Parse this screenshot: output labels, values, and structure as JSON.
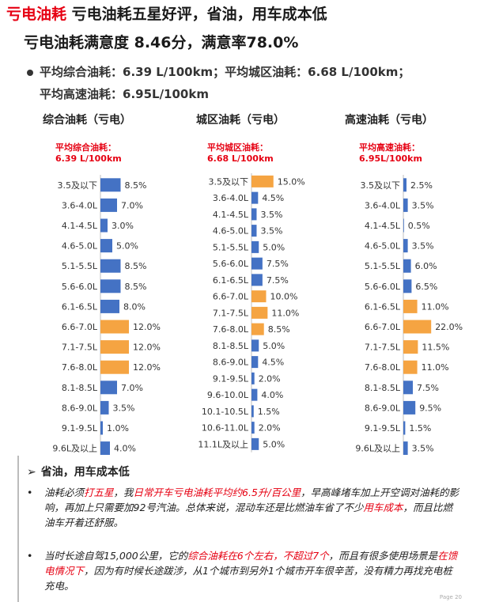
{
  "header": {
    "brand": "亏电油耗",
    "title_rest": " 亏电油耗五星好评，省油，用车成本低",
    "subtitle": "亏电油耗满意度 8.46分，满意率78.0%",
    "averages_line1": "平均综合油耗：6.39 L/100km；平均城区油耗：6.68 L/100km；",
    "averages_line2": "平均高速油耗：6.95L/100km"
  },
  "colors": {
    "accent": "#e60012",
    "bar_blue": "#4472c4",
    "bar_orange": "#f5a442"
  },
  "chart_data": [
    {
      "type": "bar",
      "orientation": "horizontal",
      "title": "综合油耗（亏电）",
      "annotation": [
        "平均综合油耗：",
        "6.39 L/100km"
      ],
      "categories": [
        "3.5及以下",
        "3.6-4.0L",
        "4.1-4.5L",
        "4.6-5.0L",
        "5.1-5.5L",
        "5.6-6.0L",
        "6.1-6.5L",
        "6.6-7.0L",
        "7.1-7.5L",
        "7.6-8.0L",
        "8.1-8.5L",
        "8.6-9.0L",
        "9.1-9.5L",
        "9.6L及以上"
      ],
      "values": [
        8.5,
        7.0,
        3.0,
        5.0,
        8.5,
        8.5,
        8.0,
        12.0,
        12.0,
        12.0,
        7.0,
        3.5,
        1.0,
        4.0
      ],
      "labels": [
        "8.5%",
        "7.0%",
        "3.0%",
        "5.0%",
        "8.5%",
        "8.5%",
        "8.0%",
        "12.0%",
        "12.0%",
        "12.0%",
        "7.0%",
        "3.5%",
        "1.0%",
        "4.0%"
      ],
      "highlight": [
        7,
        8,
        9
      ]
    },
    {
      "type": "bar",
      "orientation": "horizontal",
      "title": "城区油耗（亏电）",
      "annotation": [
        "平均城区油耗：",
        "6.68 L/100km"
      ],
      "categories": [
        "3.5及以下",
        "3.6-4.0L",
        "4.1-4.5L",
        "4.6-5.0L",
        "5.1-5.5L",
        "5.6-6.0L",
        "6.1-6.5L",
        "6.6-7.0L",
        "7.1-7.5L",
        "7.6-8.0L",
        "8.1-8.5L",
        "8.6-9.0L",
        "9.1-9.5L",
        "9.6-10.0L",
        "10.1-10.5L",
        "10.6-11.0L",
        "11.1L及以上"
      ],
      "values": [
        15.0,
        4.5,
        3.5,
        3.5,
        5.0,
        7.5,
        7.5,
        10.0,
        11.0,
        8.5,
        5.0,
        4.5,
        2.0,
        4.0,
        1.5,
        2.0,
        5.0
      ],
      "labels": [
        "15.0%",
        "4.5%",
        "3.5%",
        "3.5%",
        "5.0%",
        "7.5%",
        "7.5%",
        "10.0%",
        "11.0%",
        "8.5%",
        "5.0%",
        "4.5%",
        "2.0%",
        "4.0%",
        "1.5%",
        "2.0%",
        "5.0%"
      ],
      "highlight": [
        0,
        7,
        8,
        9
      ]
    },
    {
      "type": "bar",
      "orientation": "horizontal",
      "title": "高速油耗（亏电）",
      "annotation": [
        "平均高速油耗：",
        "6.95L/100km"
      ],
      "categories": [
        "3.5及以下",
        "3.6-4.0L",
        "4.1-4.5L",
        "4.6-5.0L",
        "5.1-5.5L",
        "5.6-6.0L",
        "6.1-6.5L",
        "6.6-7.0L",
        "7.1-7.5L",
        "7.6-8.0L",
        "8.1-8.5L",
        "8.6-9.0L",
        "9.1-9.5L",
        "9.6L及以上"
      ],
      "values": [
        2.5,
        3.5,
        0.5,
        3.5,
        6.0,
        6.5,
        11.0,
        22.0,
        11.5,
        11.0,
        7.5,
        9.5,
        1.5,
        3.5
      ],
      "labels": [
        "2.5%",
        "3.5%",
        "0.5%",
        "3.5%",
        "6.0%",
        "6.5%",
        "11.0%",
        "22.0%",
        "11.5%",
        "11.0%",
        "7.5%",
        "9.5%",
        "1.5%",
        "3.5%"
      ],
      "highlight": [
        6,
        7,
        8,
        9
      ]
    }
  ],
  "section": {
    "arrow": "➢",
    "title": "省油，用车成本低",
    "bullet": "•",
    "p1": [
      {
        "t": "油耗必须",
        "red": false
      },
      {
        "t": "打五星",
        "red": true
      },
      {
        "t": "，我",
        "red": false
      },
      {
        "t": "日常开车亏电油耗平均约6.5升/百公里",
        "red": true
      },
      {
        "t": "，早高峰堵车加上开空调对油耗的影响，再加上只需要加92号汽油。总体来说，混动车还是比燃油车省了不少",
        "red": false
      },
      {
        "t": "用车成本",
        "red": true
      },
      {
        "t": "，而且比燃油车开着还舒服。",
        "red": false
      }
    ],
    "p2": [
      {
        "t": "当时长途自驾15,000公里，它的",
        "red": false
      },
      {
        "t": "综合油耗在6个左右，不超过7个",
        "red": true
      },
      {
        "t": "，而且有很多使用场景是",
        "red": false
      },
      {
        "t": "在馈电情况下",
        "red": true
      },
      {
        "t": "，因为有时候长途跋涉，从1个城市到另外1个城市开车很辛苦，没有精力再找充电桩充电。",
        "red": false
      }
    ],
    "page_mark": "Page 20"
  }
}
